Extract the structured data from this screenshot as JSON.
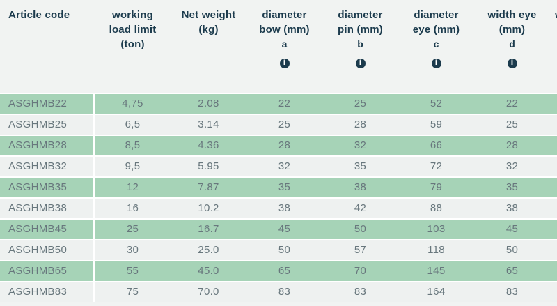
{
  "page": {
    "background": "#f1f3f2"
  },
  "colors": {
    "row_green": "#a6d3b7",
    "row_light": "#eef1f0",
    "separator": "#ffffff",
    "header_text": "#1c3b4d",
    "cell_text": "#68777d",
    "info_icon_bg": "#1c3b4d",
    "info_icon_glyph": "#ffffff"
  },
  "table": {
    "columns": [
      {
        "label": "Article code",
        "align": "left"
      },
      {
        "label": "working\nload limit\n(ton)"
      },
      {
        "label": "Net weight\n(kg)"
      },
      {
        "label": "diameter\nbow (mm)",
        "letter": "a",
        "info_icon": true,
        "info_icon_name": "info-icon"
      },
      {
        "label": "diameter\npin (mm)",
        "letter": "b",
        "info_icon": true,
        "info_icon_name": "info-icon"
      },
      {
        "label": "diameter\neye (mm)",
        "letter": "c",
        "info_icon": true,
        "info_icon_name": "info-icon"
      },
      {
        "label": "width eye\n(mm)",
        "letter": "d",
        "info_icon": true,
        "info_icon_name": "info-icon"
      },
      {
        "label": "w",
        "clipped": true
      }
    ],
    "info_glyph": "i",
    "rows": [
      [
        "ASGHMB22",
        "4,75",
        "2.08",
        "22",
        "25",
        "52",
        "22"
      ],
      [
        "ASGHMB25",
        "6,5",
        "3.14",
        "25",
        "28",
        "59",
        "25"
      ],
      [
        "ASGHMB28",
        "8,5",
        "4.36",
        "28",
        "32",
        "66",
        "28"
      ],
      [
        "ASGHMB32",
        "9,5",
        "5.95",
        "32",
        "35",
        "72",
        "32"
      ],
      [
        "ASGHMB35",
        "12",
        "7.87",
        "35",
        "38",
        "79",
        "35"
      ],
      [
        "ASGHMB38",
        "16",
        "10.2",
        "38",
        "42",
        "88",
        "38"
      ],
      [
        "ASGHMB45",
        "25",
        "16.7",
        "45",
        "50",
        "103",
        "45"
      ],
      [
        "ASGHMB50",
        "30",
        "25.0",
        "50",
        "57",
        "118",
        "50"
      ],
      [
        "ASGHMB65",
        "55",
        "45.0",
        "65",
        "70",
        "145",
        "65"
      ],
      [
        "ASGHMB83",
        "75",
        "70.0",
        "83",
        "83",
        "164",
        "83"
      ]
    ]
  }
}
